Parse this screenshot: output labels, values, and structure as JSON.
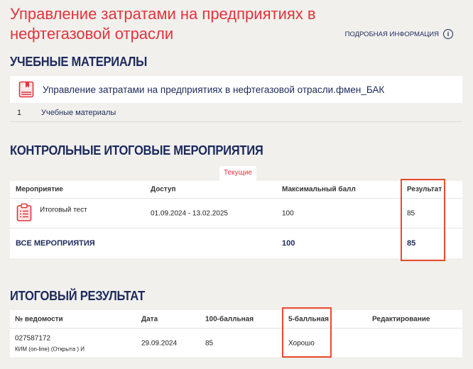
{
  "page": {
    "title": "Управление затратами на предприятиях в нефтегазовой отрасли",
    "info_link": "ПОДРОБНАЯ ИНФОРМАЦИЯ"
  },
  "materials": {
    "heading": "УЧЕБНЫЕ МАТЕРИАЛЫ",
    "course": "Управление затратами на предприятиях в нефтегазовой отрасли.фмен_БАК",
    "items": [
      {
        "num": "1",
        "label": "Учебные материалы"
      }
    ]
  },
  "events": {
    "heading": "КОНТРОЛЬНЫЕ ИТОГОВЫЕ МЕРОПРИЯТИЯ",
    "tab": "Текущие",
    "columns": [
      "Мероприятие",
      "Доступ",
      "Максимальный балл",
      "Результат"
    ],
    "rows": [
      {
        "name": "Итоговый тест",
        "access": "01.09.2024 - 13.02.2025",
        "max": "100",
        "result": "85"
      }
    ],
    "total": {
      "label": "ВСЕ МЕРОПРИЯТИЯ",
      "max": "100",
      "result": "85"
    }
  },
  "final": {
    "heading": "ИТОГОВЫЙ РЕЗУЛЬТАТ",
    "columns": [
      "№ ведомости",
      "Дата",
      "100-балльная",
      "5-балльная",
      "Редактирование"
    ],
    "rows": [
      {
        "number": "027587172",
        "type": "КИМ (on-line) (Открыта ) И",
        "date": "29.09.2024",
        "score100": "85",
        "score5": "Хорошо"
      }
    ]
  },
  "colors": {
    "accent": "#e2343c",
    "navy": "#1d2a5a",
    "highlight": "#e94a2c"
  }
}
